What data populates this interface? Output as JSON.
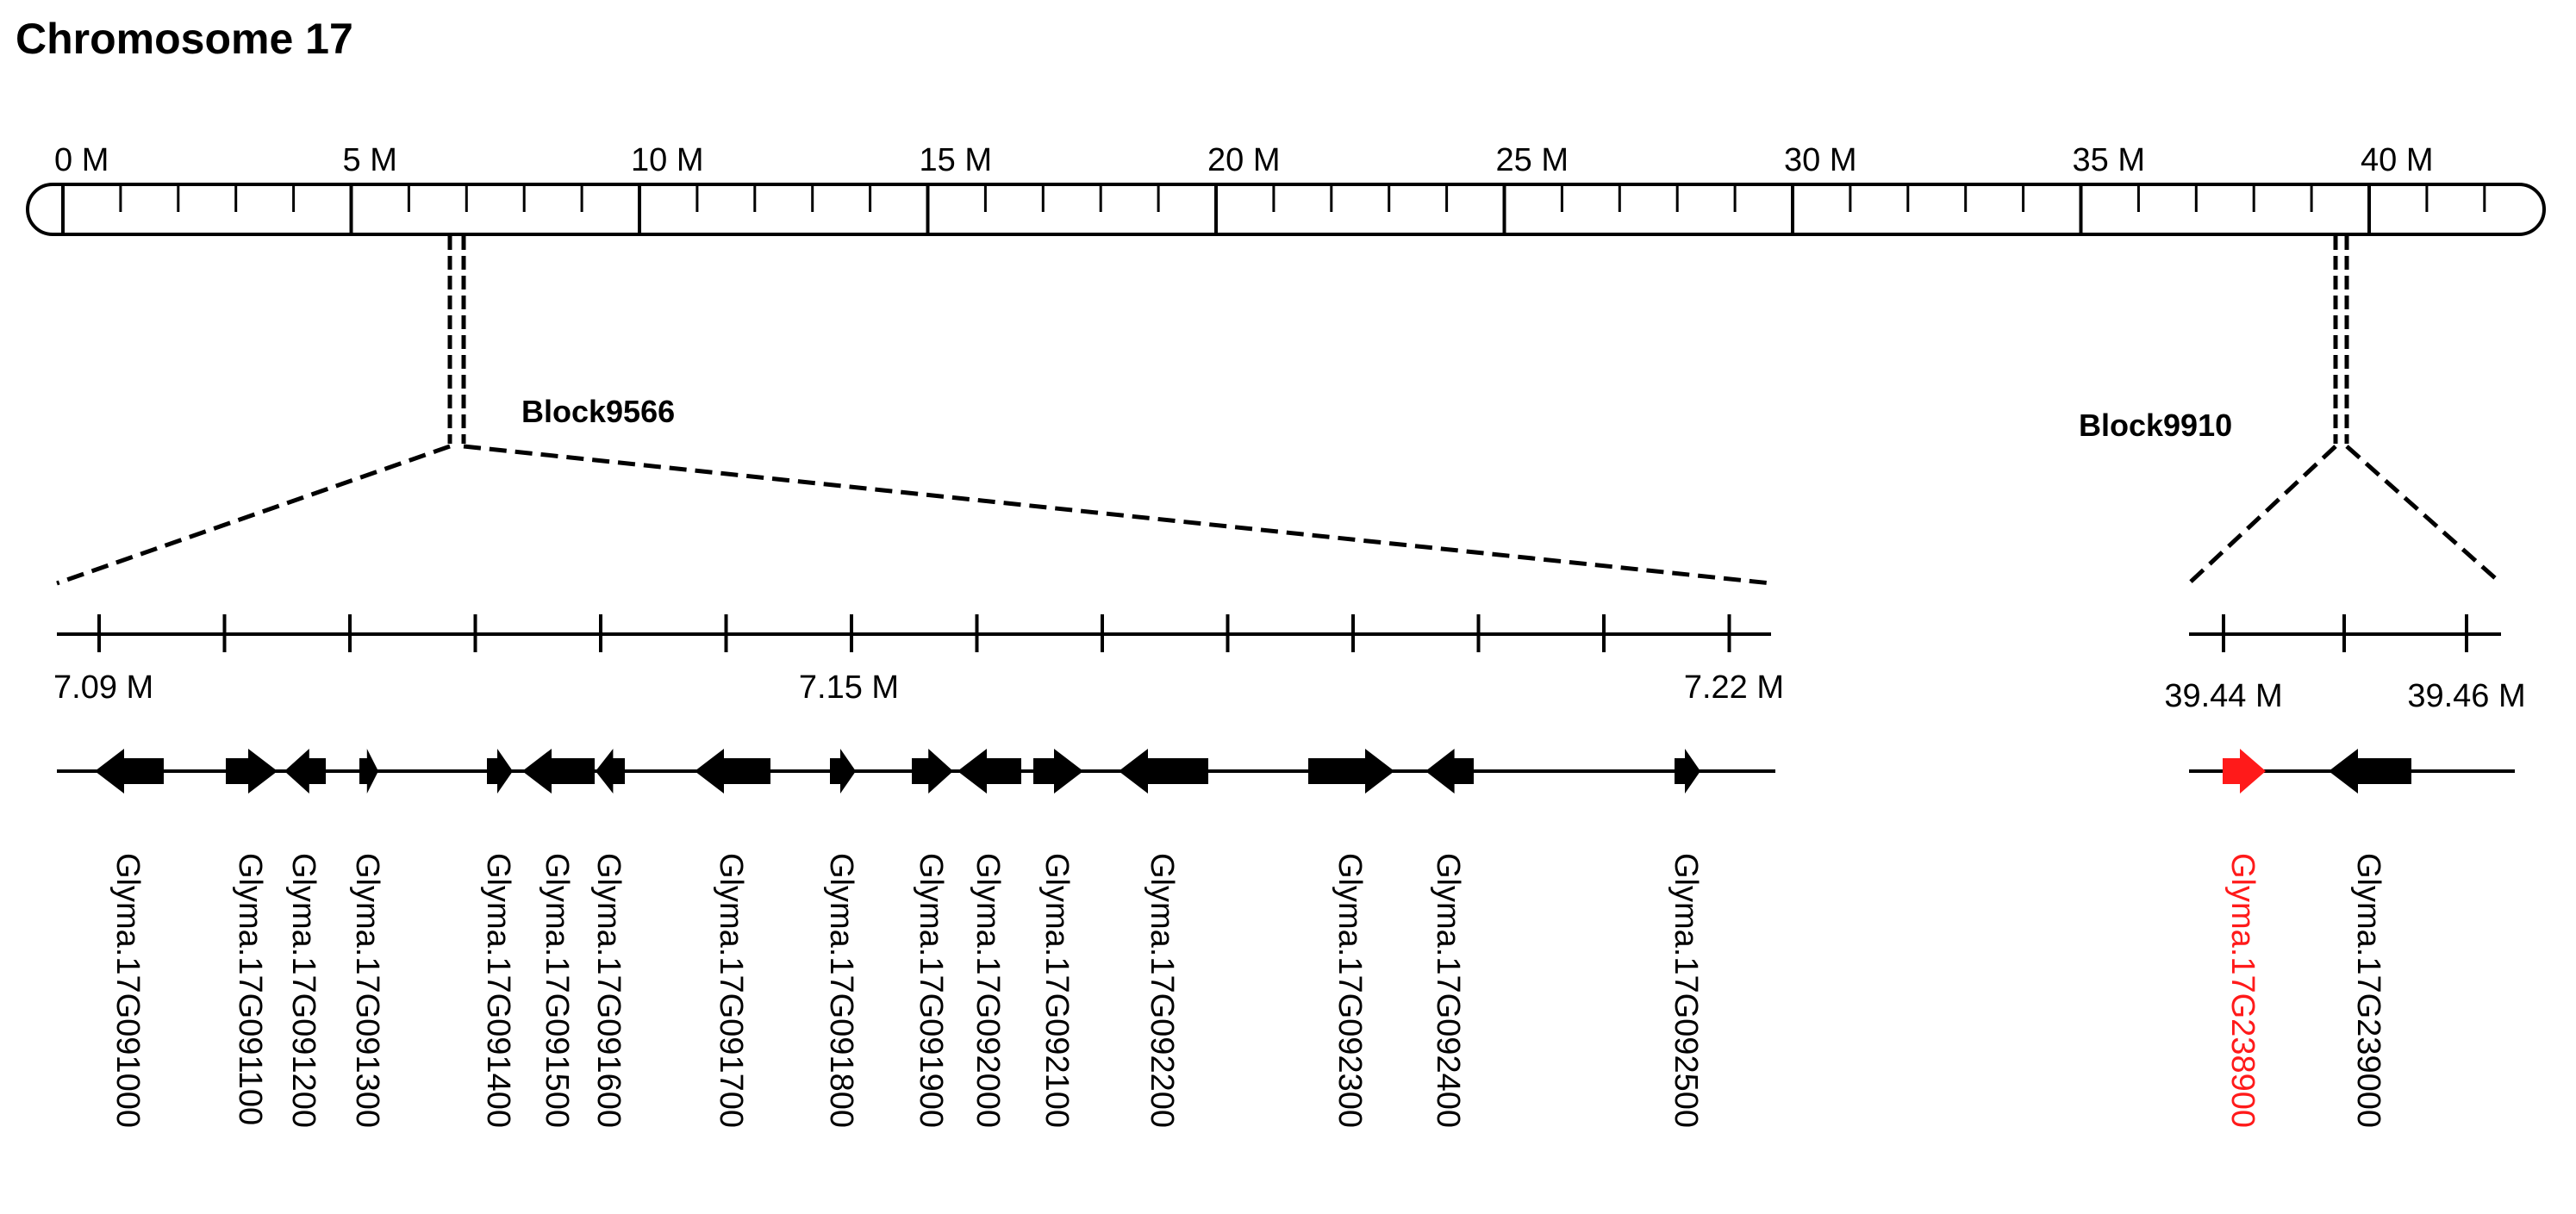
{
  "title": "Chromosome 17",
  "chromosome": {
    "max_mb": 42,
    "major_ticks": [
      {
        "mb": 0,
        "label": "0 M"
      },
      {
        "mb": 5,
        "label": "5 M"
      },
      {
        "mb": 10,
        "label": "10 M"
      },
      {
        "mb": 15,
        "label": "15 M"
      },
      {
        "mb": 20,
        "label": "20 M"
      },
      {
        "mb": 25,
        "label": "25 M"
      },
      {
        "mb": 30,
        "label": "30 M"
      },
      {
        "mb": 35,
        "label": "35 M"
      },
      {
        "mb": 40,
        "label": "40 M"
      }
    ],
    "minor_tick_step_mb": 1
  },
  "blocks": [
    {
      "name": "Block9566",
      "position_mb": 7.09,
      "scale_labels": [
        {
          "mb": 7.09,
          "label": "7.09 M"
        },
        {
          "mb": 7.15,
          "label": "7.15 M"
        },
        {
          "mb": 7.22,
          "label": "7.22 M"
        }
      ],
      "genes": [
        {
          "id": "Glyma.17G091000",
          "strand": "-",
          "highlight": false
        },
        {
          "id": "Glyma.17G091100",
          "strand": "+",
          "highlight": false
        },
        {
          "id": "Glyma.17G091200",
          "strand": "-",
          "highlight": false
        },
        {
          "id": "Glyma.17G091300",
          "strand": "+",
          "highlight": false
        },
        {
          "id": "Glyma.17G091400",
          "strand": "+",
          "highlight": false
        },
        {
          "id": "Glyma.17G091500",
          "strand": "-",
          "highlight": false
        },
        {
          "id": "Glyma.17G091600",
          "strand": "-",
          "highlight": false
        },
        {
          "id": "Glyma.17G091700",
          "strand": "-",
          "highlight": false
        },
        {
          "id": "Glyma.17G091800",
          "strand": "+",
          "highlight": false
        },
        {
          "id": "Glyma.17G091900",
          "strand": "+",
          "highlight": false
        },
        {
          "id": "Glyma.17G092000",
          "strand": "-",
          "highlight": false
        },
        {
          "id": "Glyma.17G092100",
          "strand": "+",
          "highlight": false
        },
        {
          "id": "Glyma.17G092200",
          "strand": "-",
          "highlight": false
        },
        {
          "id": "Glyma.17G092300",
          "strand": "+",
          "highlight": false
        },
        {
          "id": "Glyma.17G092400",
          "strand": "-",
          "highlight": false
        },
        {
          "id": "Glyma.17G092500",
          "strand": "+",
          "highlight": false
        }
      ]
    },
    {
      "name": "Block9910",
      "position_mb": 39.45,
      "scale_labels": [
        {
          "mb": 39.44,
          "label": "39.44 M"
        },
        {
          "mb": 39.46,
          "label": "39.46 M"
        }
      ],
      "genes": [
        {
          "id": "Glyma.17G238900",
          "strand": "+",
          "highlight": true
        },
        {
          "id": "Glyma.17G239000",
          "strand": "-",
          "highlight": false
        }
      ]
    }
  ],
  "colors": {
    "line": "#000000",
    "gene": "#000000",
    "highlight": "#ff1a1a"
  }
}
